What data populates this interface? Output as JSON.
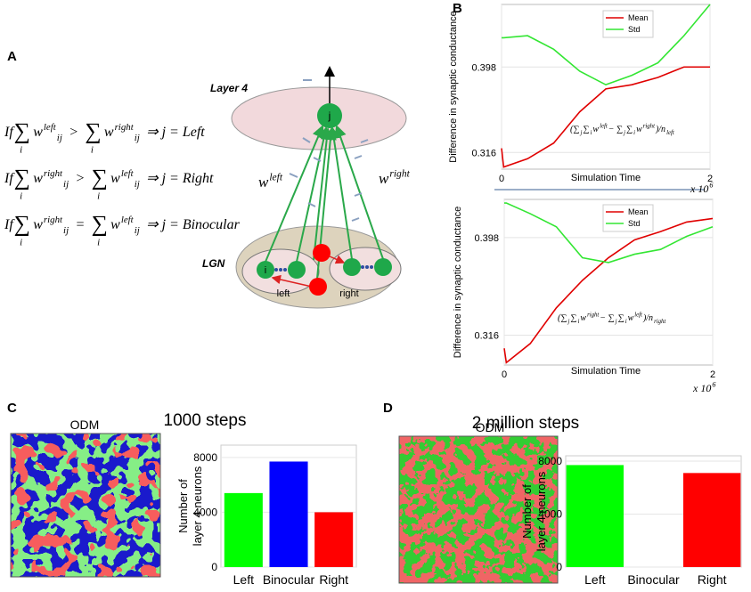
{
  "panel_labels": [
    "A",
    "B",
    "C",
    "D"
  ],
  "diagram": {
    "layer4": "Layer 4",
    "lgn": "LGN",
    "neuron_out": "j",
    "neuron_in": "i",
    "left": "left",
    "right": "right",
    "weight_left": [
      {
        "text": "w",
        "pos": "base"
      },
      {
        "text": "left",
        "pos": "sup"
      }
    ],
    "weight_right": [
      {
        "text": "w",
        "pos": "base"
      },
      {
        "text": "right",
        "pos": "sup"
      }
    ],
    "equations": [
      [
        {
          "text": "If",
          "pos": "base"
        },
        {
          "text": "∑",
          "pos": "sum"
        },
        {
          "text": "i",
          "pos": "under"
        },
        {
          "text": "w",
          "pos": "base"
        },
        {
          "text": "left",
          "pos": "sup"
        },
        {
          "text": "ij",
          "pos": "sub"
        },
        {
          "text": ">",
          "pos": "op"
        },
        {
          "text": "∑",
          "pos": "sum"
        },
        {
          "text": "i",
          "pos": "under"
        },
        {
          "text": "w",
          "pos": "base"
        },
        {
          "text": "right",
          "pos": "sup"
        },
        {
          "text": "ij",
          "pos": "sub"
        },
        {
          "text": "⇒ j = Left",
          "pos": "result"
        }
      ],
      [
        {
          "text": "If",
          "pos": "base"
        },
        {
          "text": "∑",
          "pos": "sum"
        },
        {
          "text": "i",
          "pos": "under"
        },
        {
          "text": "w",
          "pos": "base"
        },
        {
          "text": "right",
          "pos": "sup"
        },
        {
          "text": "ij",
          "pos": "sub"
        },
        {
          "text": ">",
          "pos": "op"
        },
        {
          "text": "∑",
          "pos": "sum"
        },
        {
          "text": "i",
          "pos": "under"
        },
        {
          "text": "w",
          "pos": "base"
        },
        {
          "text": "left",
          "pos": "sup"
        },
        {
          "text": "ij",
          "pos": "sub"
        },
        {
          "text": "⇒ j = Right",
          "pos": "result"
        }
      ],
      [
        {
          "text": "If",
          "pos": "base"
        },
        {
          "text": "∑",
          "pos": "sum"
        },
        {
          "text": "i",
          "pos": "under"
        },
        {
          "text": "w",
          "pos": "base"
        },
        {
          "text": "right",
          "pos": "sup"
        },
        {
          "text": "ij",
          "pos": "sub"
        },
        {
          "text": "=",
          "pos": "op"
        },
        {
          "text": "∑",
          "pos": "sum"
        },
        {
          "text": "i",
          "pos": "under"
        },
        {
          "text": "w",
          "pos": "base"
        },
        {
          "text": "left",
          "pos": "sup"
        },
        {
          "text": "ij",
          "pos": "sub"
        },
        {
          "text": "⇒ j = Binocular",
          "pos": "result"
        }
      ]
    ]
  },
  "odm": [
    {
      "label": "ODM",
      "steps": "1000 steps"
    },
    {
      "label": "ODM",
      "steps": "2 million steps"
    }
  ],
  "chart_data": [
    {
      "type": "line",
      "ylabel": "Difference in synaptic conductance",
      "xlabel": "Simulation Time",
      "x_scale": [
        {
          "text": "x 10",
          "pos": "base"
        },
        {
          "text": "6",
          "pos": "sup"
        }
      ],
      "x": [
        0,
        0.02,
        0.25,
        0.5,
        0.75,
        1,
        1.25,
        1.5,
        1.75,
        2
      ],
      "series": [
        {
          "name": "Mean",
          "color": "#e00000",
          "values": [
            0.32,
            0.302,
            0.31,
            0.325,
            0.355,
            0.377,
            0.381,
            0.388,
            0.398,
            0.398
          ]
        },
        {
          "name": "Std",
          "color": "#33e633",
          "values": [
            0.426,
            0.426,
            0.428,
            0.415,
            0.394,
            0.381,
            0.39,
            0.402,
            0.428,
            0.458
          ]
        }
      ],
      "xlim": [
        0,
        2
      ],
      "xticks": [
        0,
        2
      ],
      "ylim": [
        0.3,
        0.458
      ],
      "yticks": [
        0.316,
        0.398
      ],
      "grid": true,
      "legend": "upper center",
      "annotation": [
        {
          "text": "(∑",
          "pos": "base"
        },
        {
          "text": "j",
          "pos": "sub"
        },
        {
          "text": "∑",
          "pos": "base"
        },
        {
          "text": "i",
          "pos": "sub"
        },
        {
          "text": "w",
          "pos": "base"
        },
        {
          "text": "left",
          "pos": "sup"
        },
        {
          "text": " − ∑",
          "pos": "base"
        },
        {
          "text": "j",
          "pos": "sub"
        },
        {
          "text": "∑",
          "pos": "base"
        },
        {
          "text": "i",
          "pos": "sub"
        },
        {
          "text": "w",
          "pos": "base"
        },
        {
          "text": "right",
          "pos": "sup"
        },
        {
          "text": ")/n",
          "pos": "base"
        },
        {
          "text": "left",
          "pos": "sub"
        }
      ]
    },
    {
      "type": "line",
      "ylabel": "Difference in synaptic conductance",
      "xlabel": "Simulation Time",
      "x_scale": [
        {
          "text": "x 10",
          "pos": "base"
        },
        {
          "text": "6",
          "pos": "sup"
        }
      ],
      "x": [
        0,
        0.02,
        0.25,
        0.5,
        0.75,
        1,
        1.25,
        1.5,
        1.75,
        2
      ],
      "series": [
        {
          "name": "Mean",
          "color": "#e00000",
          "values": [
            0.305,
            0.293,
            0.309,
            0.339,
            0.362,
            0.381,
            0.396,
            0.403,
            0.411,
            0.414
          ]
        },
        {
          "name": "Std",
          "color": "#33e633",
          "values": [
            0.427,
            0.427,
            0.418,
            0.407,
            0.381,
            0.377,
            0.384,
            0.388,
            0.399,
            0.407
          ]
        }
      ],
      "xlim": [
        0,
        2
      ],
      "xticks": [
        0,
        2
      ],
      "ylim": [
        0.291,
        0.43
      ],
      "yticks": [
        0.316,
        0.398
      ],
      "grid": true,
      "legend": "upper center",
      "annotation": [
        {
          "text": "(∑",
          "pos": "base"
        },
        {
          "text": "j",
          "pos": "sub"
        },
        {
          "text": "∑",
          "pos": "base"
        },
        {
          "text": "i",
          "pos": "sub"
        },
        {
          "text": "w",
          "pos": "base"
        },
        {
          "text": "right",
          "pos": "sup"
        },
        {
          "text": " − ∑",
          "pos": "base"
        },
        {
          "text": "j",
          "pos": "sub"
        },
        {
          "text": "∑",
          "pos": "base"
        },
        {
          "text": "i",
          "pos": "sub"
        },
        {
          "text": "w",
          "pos": "base"
        },
        {
          "text": "left",
          "pos": "sup"
        },
        {
          "text": ")/n",
          "pos": "base"
        },
        {
          "text": "right",
          "pos": "sub"
        }
      ]
    },
    {
      "type": "bar",
      "ylabel": [
        "Number of",
        "layer 4 neurons"
      ],
      "categories": [
        "Left",
        "Binocular",
        "Right"
      ],
      "values": [
        5400,
        7700,
        4000
      ],
      "colors": [
        "#00ff00",
        "#0000ff",
        "#ff0000"
      ],
      "ylim": [
        0,
        8900
      ],
      "yticks": [
        0,
        4000,
        8000
      ],
      "grid": true
    },
    {
      "type": "bar",
      "ylabel": [
        "Number of",
        "layer 4 neurons"
      ],
      "categories": [
        "Left",
        "Binocular",
        "Right"
      ],
      "values": [
        7700,
        0,
        7100
      ],
      "colors": [
        "#00ff00",
        "#0000ff",
        "#ff0000"
      ],
      "ylim": [
        0,
        8400
      ],
      "yticks": [
        0,
        4000,
        8000
      ],
      "grid": true
    }
  ]
}
